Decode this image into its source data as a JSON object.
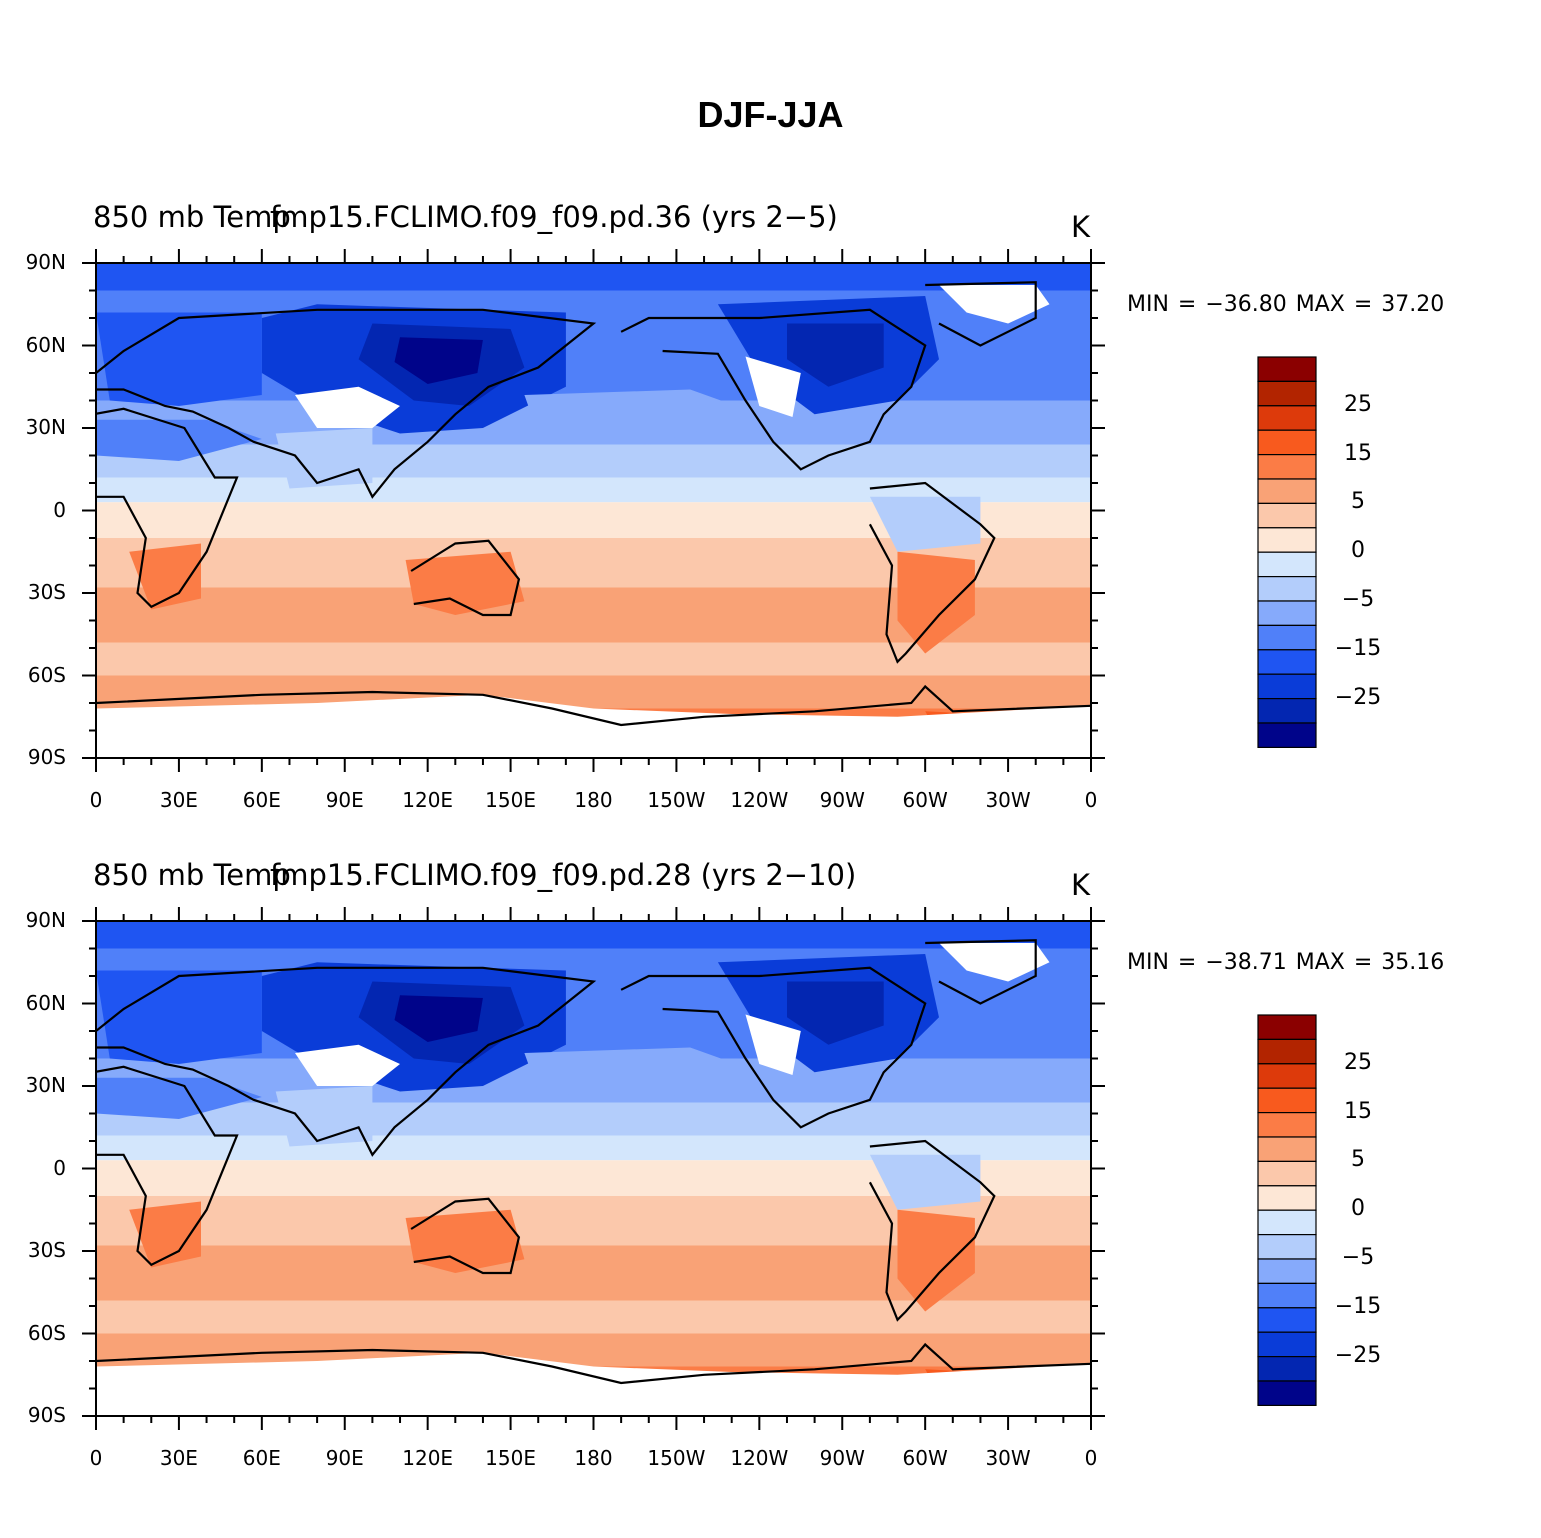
{
  "title": "DJF-JJA",
  "panels": [
    {
      "left_label": "850 mb Temp",
      "center_label": "fmp15.FCLIMO.f09_f09.pd.36 (yrs 2−5)",
      "units": "K",
      "min_max": "MIN = −36.80  MAX =   37.20",
      "min": -36.8,
      "max": 37.2
    },
    {
      "left_label": "850 mb Temp",
      "center_label": "fmp15.FCLIMO.f09_f09.pd.28 (yrs 2−10)",
      "units": "K",
      "min_max": "MIN = −38.71  MAX =   35.16",
      "min": -38.71,
      "max": 35.16
    }
  ],
  "lat_ticks": [
    "90N",
    "60N",
    "30N",
    "0",
    "30S",
    "60S",
    "90S"
  ],
  "lon_ticks": [
    "0",
    "30E",
    "60E",
    "90E",
    "120E",
    "150E",
    "180",
    "150W",
    "120W",
    "90W",
    "60W",
    "30W",
    "0"
  ],
  "colorbar": {
    "colors": [
      "#8b0000",
      "#b22400",
      "#dd3a0b",
      "#f85a1e",
      "#fb7c46",
      "#f9a276",
      "#fbc8ab",
      "#fde7d6",
      "#d3e6fc",
      "#b3cdfb",
      "#86aafb",
      "#5080f9",
      "#1f55f2",
      "#0a3cd8",
      "#0326b1",
      "#00048a"
    ],
    "labels": [
      "25",
      "15",
      "5",
      "0",
      "−5",
      "−15",
      "−25"
    ]
  },
  "chart_data": {
    "type": "heatmap",
    "title": "DJF-JJA",
    "variable": "850 mb Temp",
    "units": "K",
    "x_axis": "longitude",
    "y_axis": "latitude",
    "xlim": [
      0,
      360
    ],
    "ylim": [
      -90,
      90
    ],
    "contour_levels": [
      -30,
      -25,
      -20,
      -15,
      -10,
      -5,
      -2,
      0,
      2,
      5,
      10,
      15,
      20,
      25,
      30
    ],
    "series": [
      {
        "name": "fmp15.FCLIMO.f09_f09.pd.36 (yrs 2−5)",
        "min": -36.8,
        "max": 37.2
      },
      {
        "name": "fmp15.FCLIMO.f09_f09.pd.28 (yrs 2−10)",
        "min": -38.71,
        "max": 35.16
      }
    ]
  }
}
